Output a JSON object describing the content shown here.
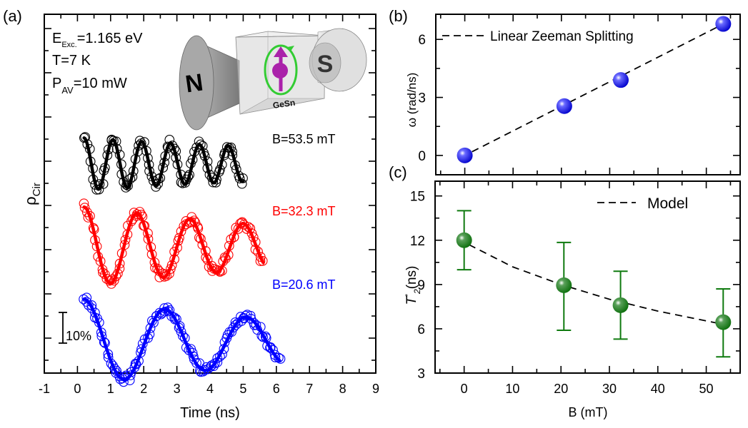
{
  "chart_data": [
    {
      "panel": "a",
      "panel_label": "(a)",
      "type": "scatter",
      "xlabel": "Time (ns)",
      "ylabel": "ρ",
      "ylabel_sub": "Cir",
      "xlim": [
        -1,
        9
      ],
      "xticks": [
        -1,
        0,
        1,
        2,
        3,
        4,
        5,
        6,
        7,
        8,
        9
      ],
      "annotations": {
        "excitation_main": "E",
        "excitation_sub": "Exc.",
        "excitation_value": "=1.165 eV",
        "temperature": "T=7 K",
        "power_main": "P",
        "power_sub": "AV",
        "power_value": "=10 mW",
        "scale_bar": "10%",
        "inset_label": "GeSn",
        "magnet_north": "N",
        "magnet_south": "S"
      },
      "series": [
        {
          "name": "B=53.5 mT",
          "color": "#000000",
          "t_start": 0.2,
          "t_end": 5.0,
          "period_ns": 0.87,
          "amplitude_pct": 8.5,
          "decay_ns": 12,
          "offset_pct": 0
        },
        {
          "name": "B=32.3 mT",
          "color": "#ff0000",
          "t_start": 0.2,
          "t_end": 5.6,
          "period_ns": 1.6,
          "amplitude_pct": 13,
          "decay_ns": 9,
          "offset_pct": -27
        },
        {
          "name": "B=20.6 mT",
          "color": "#0000ff",
          "t_start": 0.2,
          "t_end": 6.1,
          "period_ns": 2.45,
          "amplitude_pct": 14,
          "decay_ns": 9,
          "offset_pct": -58
        }
      ]
    },
    {
      "panel": "b",
      "panel_label": "(b)",
      "type": "scatter",
      "xlabel": "",
      "ylabel": "ω (rad/ns)",
      "xlim": [
        -6,
        57
      ],
      "ylim": [
        -1,
        7.3
      ],
      "yticks": [
        0,
        3,
        6
      ],
      "legend": {
        "label": "Linear Zeeman Splitting",
        "position": "top-left"
      },
      "x": [
        0,
        20.6,
        32.3,
        53.5
      ],
      "y": [
        0,
        2.55,
        3.9,
        6.8
      ],
      "fit": {
        "type": "linear",
        "slope": 0.127,
        "intercept": 0
      }
    },
    {
      "panel": "c",
      "panel_label": "(c)",
      "type": "scatter",
      "xlabel": "B (mT)",
      "ylabel": "T",
      "ylabel_sup": "*",
      "ylabel_sub": "2",
      "ylabel_unit": "(ns)",
      "xlim": [
        -6,
        57
      ],
      "ylim": [
        3,
        16
      ],
      "xticks": [
        0,
        10,
        20,
        30,
        40,
        50
      ],
      "yticks": [
        3,
        6,
        9,
        12,
        15
      ],
      "legend": {
        "label": "Model",
        "position": "top-right"
      },
      "x": [
        0,
        20.6,
        32.3,
        53.5
      ],
      "y": [
        12.0,
        8.95,
        7.6,
        6.45
      ],
      "yerr_low": [
        10.0,
        5.9,
        5.3,
        4.1
      ],
      "yerr_high": [
        14.0,
        11.85,
        9.9,
        8.7
      ],
      "model": {
        "x": [
          1,
          10,
          20,
          30,
          40,
          53.5
        ],
        "y": [
          11.7,
          10.2,
          9.0,
          8.0,
          7.2,
          6.3
        ]
      }
    }
  ]
}
